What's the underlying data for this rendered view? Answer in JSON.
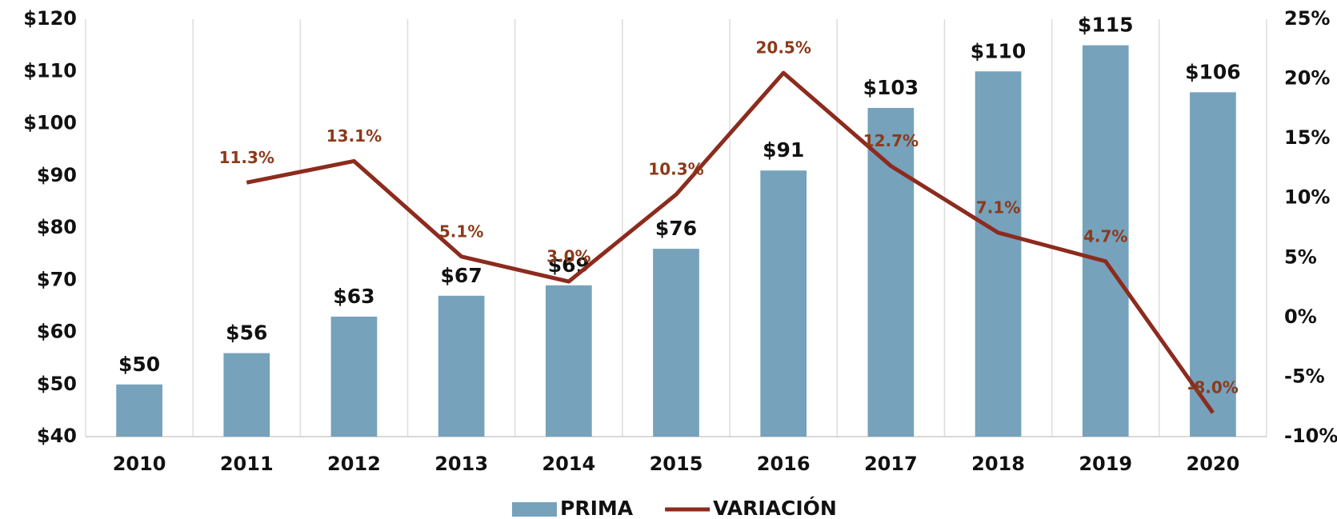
{
  "chart_data": {
    "type": "bar_line",
    "categories": [
      "2010",
      "2011",
      "2012",
      "2013",
      "2014",
      "2015",
      "2016",
      "2017",
      "2018",
      "2019",
      "2020"
    ],
    "series": [
      {
        "name": "PRIMA",
        "type": "bar",
        "color": "#76a2bc",
        "values": [
          50,
          56,
          63,
          67,
          69,
          76,
          91,
          103,
          110,
          115,
          106
        ],
        "value_labels": [
          "$50",
          "$56",
          "$63",
          "$67",
          "$69",
          "$76",
          "$91",
          "$103",
          "$110",
          "$115",
          "$106"
        ]
      },
      {
        "name": "VARIACIÓN",
        "type": "line",
        "axis": "y2",
        "color": "#8c2b1e",
        "values": [
          null,
          11.3,
          13.1,
          5.1,
          3.0,
          10.3,
          20.5,
          12.7,
          7.1,
          4.7,
          -8.0
        ],
        "value_labels": [
          null,
          "11.3%",
          "13.1%",
          "5.1%",
          "3.0%",
          "10.3%",
          "20.5%",
          "12.7%",
          "7.1%",
          "4.7%",
          "-8.0%"
        ]
      }
    ],
    "ylim": [
      40,
      120
    ],
    "yticks": [
      {
        "value": 40,
        "label": "$40"
      },
      {
        "value": 50,
        "label": "$50"
      },
      {
        "value": 60,
        "label": "$60"
      },
      {
        "value": 70,
        "label": "$70"
      },
      {
        "value": 80,
        "label": "$80"
      },
      {
        "value": 90,
        "label": "$90"
      },
      {
        "value": 100,
        "label": "$100"
      },
      {
        "value": 110,
        "label": "$110"
      },
      {
        "value": 120,
        "label": "$120"
      }
    ],
    "y2lim": [
      -10,
      25
    ],
    "y2ticks": [
      {
        "value": -10,
        "label": "-10%"
      },
      {
        "value": -5,
        "label": "-5%"
      },
      {
        "value": 0,
        "label": "0%"
      },
      {
        "value": 5,
        "label": "5%"
      },
      {
        "value": 10,
        "label": "10%"
      },
      {
        "value": 15,
        "label": "15%"
      },
      {
        "value": 20,
        "label": "20%"
      },
      {
        "value": 25,
        "label": "25%"
      }
    ],
    "legend": "bottom"
  }
}
